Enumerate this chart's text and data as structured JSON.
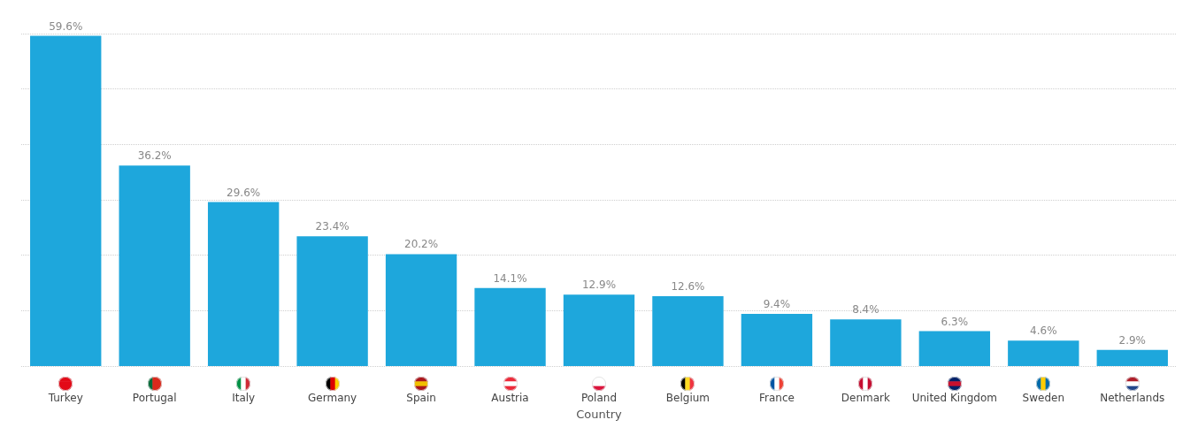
{
  "chart_data": {
    "type": "bar",
    "xlabel": "Country",
    "categories": [
      "Turkey",
      "Portugal",
      "Italy",
      "Germany",
      "Spain",
      "Austria",
      "Poland",
      "Belgium",
      "France",
      "Denmark",
      "United Kingdom",
      "Sweden",
      "Netherlands"
    ],
    "values": [
      59.6,
      36.2,
      29.6,
      23.4,
      20.2,
      14.1,
      12.9,
      12.6,
      9.4,
      8.4,
      6.3,
      4.6,
      2.9
    ],
    "value_labels": [
      "59.6%",
      "36.2%",
      "29.6%",
      "23.4%",
      "20.2%",
      "14.1%",
      "12.9%",
      "12.6%",
      "9.4%",
      "8.4%",
      "6.3%",
      "4.6%",
      "2.9%"
    ],
    "color": "#1ea7dc",
    "ylim": [
      0,
      60
    ],
    "yticks": [
      {
        "value": 0,
        "label": null
      },
      {
        "value": 10,
        "label": null
      },
      {
        "value": 20,
        "label": null
      },
      {
        "value": 30,
        "label": null
      },
      {
        "value": 40,
        "label": null
      },
      {
        "value": 50,
        "label": null
      },
      {
        "value": 60,
        "label": null
      }
    ],
    "grid": "y",
    "tick_labels": "x"
  }
}
